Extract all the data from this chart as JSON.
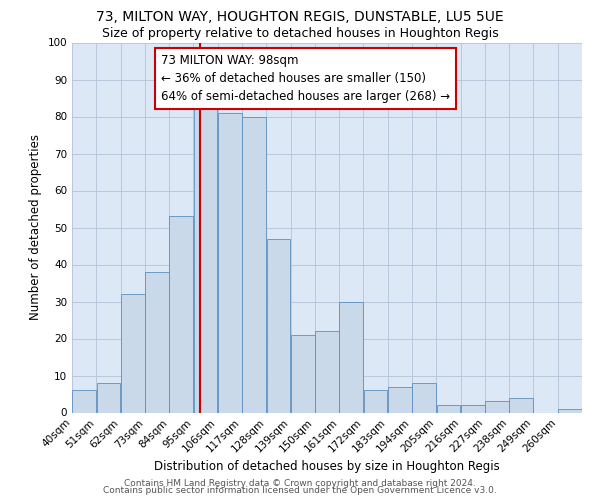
{
  "title": "73, MILTON WAY, HOUGHTON REGIS, DUNSTABLE, LU5 5UE",
  "subtitle": "Size of property relative to detached houses in Houghton Regis",
  "xlabel": "Distribution of detached houses by size in Houghton Regis",
  "ylabel": "Number of detached properties",
  "bin_labels": [
    "40sqm",
    "51sqm",
    "62sqm",
    "73sqm",
    "84sqm",
    "95sqm",
    "106sqm",
    "117sqm",
    "128sqm",
    "139sqm",
    "150sqm",
    "161sqm",
    "172sqm",
    "183sqm",
    "194sqm",
    "205sqm",
    "216sqm",
    "227sqm",
    "238sqm",
    "249sqm",
    "260sqm"
  ],
  "bin_left_edges": [
    40,
    51,
    62,
    73,
    84,
    95,
    106,
    117,
    128,
    139,
    150,
    161,
    172,
    183,
    194,
    205,
    216,
    227,
    238,
    249,
    260
  ],
  "counts": [
    6,
    8,
    32,
    38,
    53,
    82,
    81,
    80,
    47,
    21,
    22,
    30,
    6,
    7,
    8,
    2,
    2,
    3,
    4,
    0,
    1
  ],
  "bar_color": "#c9d9ea",
  "bar_edge_color": "#5a8fc0",
  "plot_bg_color": "#dce8f5",
  "property_value": 98,
  "vline_color": "#cc0000",
  "annotation_title": "73 MILTON WAY: 98sqm",
  "annotation_line1": "← 36% of detached houses are smaller (150)",
  "annotation_line2": "64% of semi-detached houses are larger (268) →",
  "annotation_box_facecolor": "#ffffff",
  "annotation_box_edgecolor": "#cc0000",
  "ylim": [
    0,
    100
  ],
  "yticks": [
    0,
    10,
    20,
    30,
    40,
    50,
    60,
    70,
    80,
    90,
    100
  ],
  "footnote1": "Contains HM Land Registry data © Crown copyright and database right 2024.",
  "footnote2": "Contains public sector information licensed under the Open Government Licence v3.0.",
  "fig_bg_color": "#ffffff",
  "grid_color": "#b8c8dc",
  "title_fontsize": 10,
  "subtitle_fontsize": 9,
  "axis_label_fontsize": 8.5,
  "tick_fontsize": 7.5,
  "annotation_fontsize": 8.5,
  "footnote_fontsize": 6.5,
  "bin_width": 11
}
